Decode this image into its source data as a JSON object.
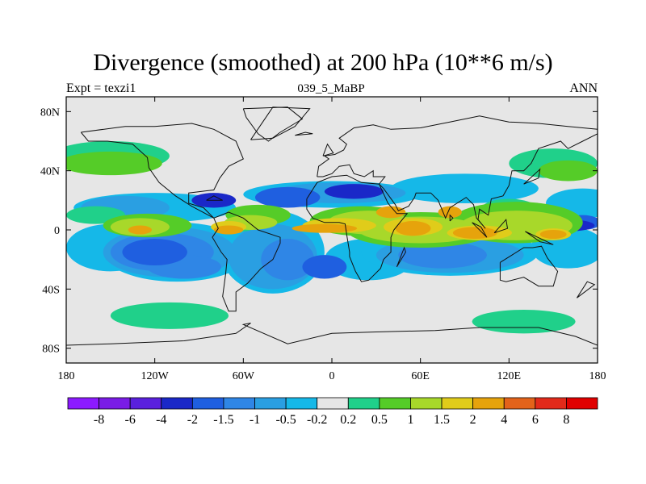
{
  "chart_data": {
    "type": "map-contour",
    "title": "Divergence (smoothed) at 200 hPa (10**6 m/s)",
    "subtitle_left": "Expt = texzi1",
    "subtitle_center": "039_5_MaBP",
    "subtitle_right": "ANN",
    "xlim": [
      -180,
      180
    ],
    "ylim": [
      -90,
      90
    ],
    "x_ticks": [
      {
        "value": -180,
        "label": "180"
      },
      {
        "value": -120,
        "label": "120W"
      },
      {
        "value": -60,
        "label": "60W"
      },
      {
        "value": 0,
        "label": "0"
      },
      {
        "value": 60,
        "label": "60E"
      },
      {
        "value": 120,
        "label": "120E"
      },
      {
        "value": 180,
        "label": "180"
      }
    ],
    "y_ticks": [
      {
        "value": 80,
        "label": "80N"
      },
      {
        "value": 40,
        "label": "40N"
      },
      {
        "value": 0,
        "label": "0"
      },
      {
        "value": -40,
        "label": "40S"
      },
      {
        "value": -80,
        "label": "80S"
      }
    ],
    "colorbar": {
      "boundaries": [
        "-8",
        "-6",
        "-4",
        "-2",
        "-1.5",
        "-1",
        "-0.5",
        "-0.2",
        "0.2",
        "0.5",
        "1",
        "1.5",
        "2",
        "4",
        "6",
        "8"
      ],
      "colors": [
        "#8c1aff",
        "#7a1ce6",
        "#5a20dd",
        "#1a28c8",
        "#1f5fe0",
        "#2f86e6",
        "#2a9fe2",
        "#15b8e8",
        "#e6e6e6",
        "#20d08a",
        "#55cc28",
        "#a8d82a",
        "#e0cc1a",
        "#e6a30c",
        "#e3631a",
        "#e22a1a",
        "#e00000"
      ]
    },
    "regions": [
      {
        "level": 7,
        "lon": -150,
        "lat": -12,
        "rlon": 30,
        "rlat": 16
      },
      {
        "level": 7,
        "lon": -105,
        "lat": -15,
        "rlon": 50,
        "rlat": 20
      },
      {
        "level": 7,
        "lon": -40,
        "lat": -15,
        "rlon": 35,
        "rlat": 28
      },
      {
        "level": 7,
        "lon": 25,
        "lat": -20,
        "rlon": 30,
        "rlat": 14
      },
      {
        "level": 7,
        "lon": 80,
        "lat": -15,
        "rlon": 60,
        "rlat": 16
      },
      {
        "level": 7,
        "lon": 160,
        "lat": -12,
        "rlon": 25,
        "rlat": 14
      },
      {
        "level": 7,
        "lon": -120,
        "lat": 15,
        "rlon": 55,
        "rlat": 10
      },
      {
        "level": 7,
        "lon": 0,
        "lat": 24,
        "rlon": 60,
        "rlat": 9
      },
      {
        "level": 7,
        "lon": 90,
        "lat": 28,
        "rlon": 50,
        "rlat": 10
      },
      {
        "level": 7,
        "lon": 170,
        "lat": 18,
        "rlon": 25,
        "rlat": 10
      },
      {
        "level": 6,
        "lon": -110,
        "lat": -15,
        "rlon": 45,
        "rlat": 17
      },
      {
        "level": 6,
        "lon": -40,
        "lat": -18,
        "rlon": 30,
        "rlat": 22
      },
      {
        "level": 6,
        "lon": 80,
        "lat": -17,
        "rlon": 50,
        "rlat": 12
      },
      {
        "level": 6,
        "lon": -140,
        "lat": 15,
        "rlon": 30,
        "rlat": 8
      },
      {
        "level": 6,
        "lon": 5,
        "lat": 25,
        "rlon": 45,
        "rlat": 7
      },
      {
        "level": 5,
        "lon": -115,
        "lat": -15,
        "rlon": 35,
        "rlat": 13
      },
      {
        "level": 5,
        "lon": -30,
        "lat": -20,
        "rlon": 18,
        "rlat": 14
      },
      {
        "level": 5,
        "lon": 75,
        "lat": -17,
        "rlon": 30,
        "rlat": 9
      },
      {
        "level": 5,
        "lon": -100,
        "lat": -25,
        "rlon": 25,
        "rlat": 8
      },
      {
        "level": 4,
        "lon": -120,
        "lat": -15,
        "rlon": 22,
        "rlat": 9
      },
      {
        "level": 4,
        "lon": -30,
        "lat": 22,
        "rlon": 22,
        "rlat": 7
      },
      {
        "level": 4,
        "lon": -5,
        "lat": -25,
        "rlon": 15,
        "rlat": 8
      },
      {
        "level": 4,
        "lon": 170,
        "lat": 5,
        "rlon": 12,
        "rlat": 5
      },
      {
        "level": 3,
        "lon": -140,
        "lat": 5,
        "rlon": 10,
        "rlat": 4
      },
      {
        "level": 3,
        "lon": 160,
        "lat": 3,
        "rlon": 18,
        "rlat": 4
      },
      {
        "level": 3,
        "lon": -80,
        "lat": 20,
        "rlon": 15,
        "rlat": 5
      },
      {
        "level": 3,
        "lon": 15,
        "lat": 26,
        "rlon": 20,
        "rlat": 5
      },
      {
        "level": 9,
        "lon": -160,
        "lat": 10,
        "rlon": 20,
        "rlat": 6
      },
      {
        "level": 9,
        "lon": -60,
        "lat": 5,
        "rlon": 10,
        "rlat": 6
      },
      {
        "level": 9,
        "lon": 30,
        "lat": 5,
        "rlon": 15,
        "rlat": 5
      },
      {
        "level": 9,
        "lon": 120,
        "lat": 15,
        "rlon": 18,
        "rlat": 6
      },
      {
        "level": 9,
        "lon": -150,
        "lat": 50,
        "rlon": 40,
        "rlat": 10
      },
      {
        "level": 9,
        "lon": 150,
        "lat": 45,
        "rlon": 30,
        "rlat": 10
      },
      {
        "level": 9,
        "lon": -110,
        "lat": -58,
        "rlon": 40,
        "rlat": 9
      },
      {
        "level": 9,
        "lon": 130,
        "lat": -62,
        "rlon": 35,
        "rlat": 8
      },
      {
        "level": 10,
        "lon": -50,
        "lat": 10,
        "rlon": 22,
        "rlat": 7
      },
      {
        "level": 10,
        "lon": 20,
        "lat": 6,
        "rlon": 35,
        "rlat": 10
      },
      {
        "level": 10,
        "lon": 60,
        "lat": 0,
        "rlon": 50,
        "rlat": 12
      },
      {
        "level": 10,
        "lon": 125,
        "lat": 5,
        "rlon": 45,
        "rlat": 14
      },
      {
        "level": 10,
        "lon": -125,
        "lat": 3,
        "rlon": 30,
        "rlat": 8
      },
      {
        "level": 10,
        "lon": -150,
        "lat": 45,
        "rlon": 35,
        "rlat": 8
      },
      {
        "level": 10,
        "lon": 160,
        "lat": 40,
        "rlon": 20,
        "rlat": 7
      },
      {
        "level": 11,
        "lon": -55,
        "lat": 5,
        "rlon": 18,
        "rlat": 5
      },
      {
        "level": 11,
        "lon": 25,
        "lat": 5,
        "rlon": 28,
        "rlat": 8
      },
      {
        "level": 11,
        "lon": 60,
        "lat": 0,
        "rlon": 42,
        "rlat": 9
      },
      {
        "level": 11,
        "lon": 125,
        "lat": 3,
        "rlon": 38,
        "rlat": 10
      },
      {
        "level": 11,
        "lon": -130,
        "lat": 2,
        "rlon": 20,
        "rlat": 6
      },
      {
        "level": 12,
        "lon": -70,
        "lat": 2,
        "rlon": 12,
        "rlat": 4
      },
      {
        "level": 12,
        "lon": 5,
        "lat": 3,
        "rlon": 25,
        "rlat": 5
      },
      {
        "level": 12,
        "lon": 55,
        "lat": 2,
        "rlon": 20,
        "rlat": 6
      },
      {
        "level": 12,
        "lon": 100,
        "lat": -2,
        "rlon": 22,
        "rlat": 5
      },
      {
        "level": 12,
        "lon": 150,
        "lat": -3,
        "rlon": 12,
        "rlat": 4
      },
      {
        "level": 13,
        "lon": -70,
        "lat": 0,
        "rlon": 10,
        "rlat": 3
      },
      {
        "level": 13,
        "lon": -5,
        "lat": 1,
        "rlon": 22,
        "rlat": 3
      },
      {
        "level": 13,
        "lon": 55,
        "lat": 1,
        "rlon": 12,
        "rlat": 5
      },
      {
        "level": 13,
        "lon": 97,
        "lat": -2,
        "rlon": 15,
        "rlat": 4
      },
      {
        "level": 13,
        "lon": 150,
        "lat": -3,
        "rlon": 9,
        "rlat": 3
      },
      {
        "level": 13,
        "lon": -130,
        "lat": 0,
        "rlon": 8,
        "rlat": 3
      },
      {
        "level": 13,
        "lon": 40,
        "lat": 12,
        "rlon": 10,
        "rlat": 4
      },
      {
        "level": 13,
        "lon": 80,
        "lat": 12,
        "rlon": 8,
        "rlat": 4
      }
    ],
    "coastlines": [
      [
        [
          -170,
          66
        ],
        [
          -140,
          70
        ],
        [
          -120,
          70
        ],
        [
          -95,
          72
        ],
        [
          -80,
          68
        ],
        [
          -65,
          60
        ],
        [
          -60,
          48
        ],
        [
          -70,
          43
        ],
        [
          -76,
          35
        ],
        [
          -80,
          27
        ],
        [
          -97,
          25
        ],
        [
          -97,
          18
        ],
        [
          -87,
          15
        ],
        [
          -80,
          8
        ],
        [
          -95,
          16
        ],
        [
          -106,
          23
        ],
        [
          -117,
          32
        ],
        [
          -124,
          42
        ],
        [
          -125,
          49
        ],
        [
          -135,
          58
        ],
        [
          -152,
          60
        ],
        [
          -165,
          60
        ],
        [
          -170,
          66
        ]
      ],
      [
        [
          -60,
          82
        ],
        [
          -30,
          83
        ],
        [
          -20,
          75
        ],
        [
          -35,
          66
        ],
        [
          -43,
          60
        ],
        [
          -50,
          65
        ],
        [
          -58,
          76
        ],
        [
          -60,
          82
        ]
      ],
      [
        [
          -80,
          8
        ],
        [
          -77,
          1
        ],
        [
          -81,
          -5
        ],
        [
          -75,
          -15
        ],
        [
          -71,
          -20
        ],
        [
          -72,
          -30
        ],
        [
          -74,
          -45
        ],
        [
          -70,
          -55
        ],
        [
          -65,
          -55
        ],
        [
          -65,
          -42
        ],
        [
          -57,
          -36
        ],
        [
          -48,
          -26
        ],
        [
          -40,
          -20
        ],
        [
          -35,
          -9
        ],
        [
          -35,
          -5
        ],
        [
          -50,
          0
        ],
        [
          -60,
          8
        ],
        [
          -70,
          12
        ],
        [
          -80,
          8
        ]
      ],
      [
        [
          -10,
          36
        ],
        [
          -9,
          43
        ],
        [
          -2,
          48
        ],
        [
          -5,
          50
        ],
        [
          2,
          51
        ],
        [
          8,
          54
        ],
        [
          10,
          58
        ],
        [
          5,
          62
        ],
        [
          15,
          69
        ],
        [
          28,
          71
        ],
        [
          40,
          68
        ],
        [
          60,
          69
        ],
        [
          80,
          73
        ],
        [
          100,
          77
        ],
        [
          120,
          73
        ],
        [
          140,
          72
        ],
        [
          160,
          70
        ],
        [
          180,
          68
        ],
        [
          180,
          65
        ],
        [
          170,
          60
        ],
        [
          160,
          55
        ],
        [
          155,
          60
        ],
        [
          140,
          55
        ],
        [
          135,
          45
        ],
        [
          130,
          40
        ],
        [
          122,
          40
        ],
        [
          120,
          30
        ],
        [
          116,
          23
        ],
        [
          108,
          21
        ],
        [
          106,
          10
        ],
        [
          100,
          14
        ],
        [
          99,
          7
        ],
        [
          104,
          1
        ],
        [
          98,
          8
        ],
        [
          96,
          17
        ],
        [
          91,
          22
        ],
        [
          80,
          15
        ],
        [
          77,
          8
        ],
        [
          72,
          20
        ],
        [
          67,
          25
        ],
        [
          57,
          25
        ],
        [
          56,
          22
        ],
        [
          52,
          16
        ],
        [
          45,
          13
        ],
        [
          43,
          17
        ],
        [
          35,
          28
        ],
        [
          32,
          31
        ],
        [
          36,
          36
        ],
        [
          28,
          36
        ],
        [
          28,
          40
        ],
        [
          22,
          36
        ],
        [
          15,
          38
        ],
        [
          12,
          44
        ],
        [
          5,
          43
        ],
        [
          0,
          38
        ],
        [
          -6,
          36
        ],
        [
          -10,
          36
        ]
      ],
      [
        [
          -17,
          21
        ],
        [
          -17,
          14
        ],
        [
          -13,
          8
        ],
        [
          -5,
          5
        ],
        [
          5,
          5
        ],
        [
          9,
          4
        ],
        [
          10,
          -3
        ],
        [
          12,
          -15
        ],
        [
          12,
          -18
        ],
        [
          16,
          -28
        ],
        [
          20,
          -35
        ],
        [
          25,
          -34
        ],
        [
          33,
          -26
        ],
        [
          35,
          -20
        ],
        [
          40,
          -15
        ],
        [
          40,
          -5
        ],
        [
          42,
          0
        ],
        [
          51,
          11
        ],
        [
          44,
          11
        ],
        [
          38,
          18
        ],
        [
          32,
          31
        ],
        [
          20,
          32
        ],
        [
          10,
          37
        ],
        [
          0,
          36
        ],
        [
          -10,
          32
        ],
        [
          -17,
          21
        ]
      ],
      [
        [
          114,
          -22
        ],
        [
          114,
          -34
        ],
        [
          118,
          -35
        ],
        [
          130,
          -32
        ],
        [
          140,
          -38
        ],
        [
          150,
          -38
        ],
        [
          153,
          -28
        ],
        [
          146,
          -19
        ],
        [
          142,
          -11
        ],
        [
          136,
          -12
        ],
        [
          130,
          -12
        ],
        [
          122,
          -17
        ],
        [
          114,
          -22
        ]
      ],
      [
        [
          -180,
          -78
        ],
        [
          -150,
          -77
        ],
        [
          -100,
          -75
        ],
        [
          -65,
          -70
        ],
        [
          -55,
          -63
        ],
        [
          -60,
          -64
        ],
        [
          -30,
          -77
        ],
        [
          0,
          -70
        ],
        [
          30,
          -69
        ],
        [
          70,
          -68
        ],
        [
          100,
          -66
        ],
        [
          140,
          -66
        ],
        [
          165,
          -72
        ],
        [
          180,
          -78
        ]
      ],
      [
        [
          -55,
          61
        ],
        [
          -40,
          83
        ],
        [
          -15,
          82
        ],
        [
          -25,
          70
        ],
        [
          -40,
          62
        ],
        [
          -55,
          61
        ]
      ],
      [
        [
          95,
          5
        ],
        [
          105,
          -5
        ],
        [
          101,
          2
        ],
        [
          95,
          5
        ]
      ],
      [
        [
          110,
          -2
        ],
        [
          118,
          7
        ],
        [
          119,
          1
        ],
        [
          110,
          -2
        ]
      ],
      [
        [
          131,
          -1
        ],
        [
          150,
          -10
        ],
        [
          141,
          -8
        ],
        [
          131,
          -1
        ]
      ],
      [
        [
          130,
          31
        ],
        [
          141,
          41
        ],
        [
          140,
          35
        ],
        [
          130,
          31
        ]
      ],
      [
        [
          -6,
          50
        ],
        [
          -3,
          58
        ],
        [
          1,
          52
        ],
        [
          -6,
          50
        ]
      ],
      [
        [
          44,
          -25
        ],
        [
          50,
          -15
        ],
        [
          49,
          -12
        ],
        [
          44,
          -25
        ]
      ],
      [
        [
          166,
          -46
        ],
        [
          178,
          -37
        ],
        [
          173,
          -35
        ],
        [
          166,
          -46
        ]
      ],
      [
        [
          -25,
          64
        ],
        [
          -13,
          65
        ],
        [
          -18,
          66
        ],
        [
          -25,
          64
        ]
      ],
      [
        [
          80,
          6
        ],
        [
          82,
          8
        ],
        [
          80,
          10
        ],
        [
          80,
          6
        ]
      ],
      [
        [
          -85,
          20
        ],
        [
          -74,
          20
        ],
        [
          -80,
          23
        ],
        [
          -85,
          20
        ]
      ]
    ]
  }
}
